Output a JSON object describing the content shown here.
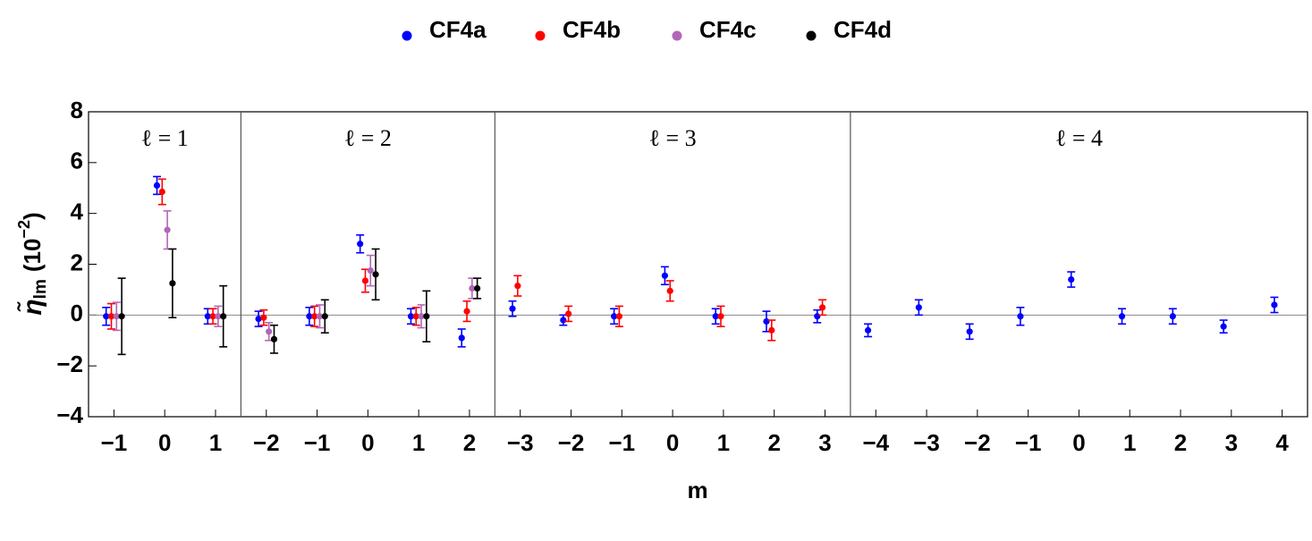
{
  "chart_data": {
    "type": "errorbar",
    "x_label": "m",
    "y_label": {
      "symbol": "η̃",
      "subscript": "lm",
      "unit": "(10",
      "exponent": "−2",
      "close": ")"
    },
    "groups": [
      {
        "label": "ℓ = 1",
        "categories": [
          "−1",
          "0",
          "1"
        ]
      },
      {
        "label": "ℓ = 2",
        "categories": [
          "−2",
          "−1",
          "0",
          "1",
          "2"
        ]
      },
      {
        "label": "ℓ = 3",
        "categories": [
          "−3",
          "−2",
          "−1",
          "0",
          "1",
          "2",
          "3"
        ]
      },
      {
        "label": "ℓ = 4",
        "categories": [
          "−4",
          "−3",
          "−2",
          "−1",
          "0",
          "1",
          "2",
          "3",
          "4"
        ]
      }
    ],
    "ylim": [
      -4,
      8
    ],
    "yticks": [
      {
        "value": -4,
        "label": "−4"
      },
      {
        "value": -2,
        "label": "−2"
      },
      0,
      2,
      4,
      6,
      8
    ],
    "series": [
      {
        "name": "CF4a",
        "color": "#0000ff",
        "values": [
          -0.05,
          5.1,
          -0.05,
          -0.15,
          -0.05,
          2.8,
          -0.05,
          -0.9,
          0.25,
          -0.2,
          -0.05,
          1.55,
          -0.05,
          -0.25,
          -0.05,
          -0.6,
          0.3,
          -0.65,
          -0.05,
          1.4,
          -0.05,
          -0.05,
          -0.45,
          0.4
        ],
        "errors": [
          0.35,
          0.35,
          0.3,
          0.3,
          0.35,
          0.35,
          0.3,
          0.35,
          0.3,
          0.2,
          0.3,
          0.35,
          0.3,
          0.4,
          0.25,
          0.25,
          0.3,
          0.3,
          0.35,
          0.3,
          0.3,
          0.3,
          0.25,
          0.3
        ]
      },
      {
        "name": "CF4b",
        "color": "#ff0000",
        "values": [
          -0.05,
          4.85,
          -0.05,
          -0.1,
          -0.05,
          1.35,
          -0.05,
          0.15,
          1.15,
          0.05,
          -0.05,
          0.95,
          -0.05,
          -0.6,
          0.3,
          null,
          null,
          null,
          null,
          null,
          null,
          null,
          null,
          null
        ],
        "errors": [
          0.5,
          0.5,
          0.3,
          0.3,
          0.4,
          0.45,
          0.35,
          0.4,
          0.4,
          0.3,
          0.4,
          0.4,
          0.4,
          0.4,
          0.3,
          null,
          null,
          null,
          null,
          null,
          null,
          null,
          null,
          null
        ]
      },
      {
        "name": "CF4c",
        "color": "#b266b8",
        "values": [
          -0.05,
          3.35,
          -0.05,
          -0.65,
          -0.05,
          1.75,
          -0.05,
          1.05,
          null,
          null,
          null,
          null,
          null,
          null,
          null,
          null,
          null,
          null,
          null,
          null,
          null,
          null,
          null,
          null
        ],
        "errors": [
          0.55,
          0.75,
          0.4,
          0.35,
          0.45,
          0.6,
          0.45,
          0.4,
          null,
          null,
          null,
          null,
          null,
          null,
          null,
          null,
          null,
          null,
          null,
          null,
          null,
          null,
          null,
          null
        ]
      },
      {
        "name": "CF4d",
        "color": "#000000",
        "values": [
          -0.05,
          1.25,
          -0.05,
          -0.95,
          -0.05,
          1.6,
          -0.05,
          1.05,
          null,
          null,
          null,
          null,
          null,
          null,
          null,
          null,
          null,
          null,
          null,
          null,
          null,
          null,
          null,
          null
        ],
        "errors": [
          1.5,
          1.35,
          1.2,
          0.55,
          0.65,
          1.0,
          1.0,
          0.4,
          null,
          null,
          null,
          null,
          null,
          null,
          null,
          null,
          null,
          null,
          null,
          null,
          null,
          null,
          null,
          null
        ]
      }
    ]
  }
}
